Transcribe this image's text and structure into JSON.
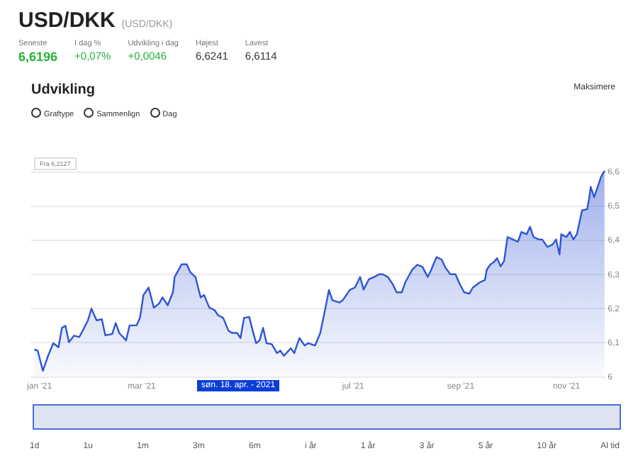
{
  "chart_data": {
    "type": "area",
    "title": "USD/DKK",
    "subtitle": "(USD/DKK)",
    "annotations": [
      "Seneste",
      "6,6196",
      "I dag %",
      "+0,07%",
      "Udvikling i dag",
      "+0,0046",
      "Højest",
      "6,6241",
      "Lavest",
      "6,6114",
      "Udvikling",
      "Maksimere",
      "Graftype",
      "Sammenlign",
      "Dag",
      "Fra 6,2127",
      "søn. 18. apr. - 2021",
      "1d",
      "1u",
      "1m",
      "3m",
      "6m",
      "i år",
      "1 år",
      "3 år",
      "5 år",
      "10 år",
      "Al tid"
    ],
    "x": [
      "2020-12-29",
      "2020-12-31",
      "2021-01-03",
      "2021-01-06",
      "2021-01-09",
      "2021-01-12",
      "2021-01-14",
      "2021-01-16",
      "2021-01-18",
      "2021-01-21",
      "2021-01-24",
      "2021-01-26",
      "2021-01-29",
      "2021-01-31",
      "2021-02-03",
      "2021-02-06",
      "2021-02-08",
      "2021-02-12",
      "2021-02-14",
      "2021-02-16",
      "2021-02-20",
      "2021-02-22",
      "2021-02-26",
      "2021-02-28",
      "2021-03-02",
      "2021-03-05",
      "2021-03-08",
      "2021-03-11",
      "2021-03-13",
      "2021-03-16",
      "2021-03-19",
      "2021-03-20",
      "2021-03-24",
      "2021-03-27",
      "2021-03-29",
      "2021-04-01",
      "2021-04-04",
      "2021-04-06",
      "2021-04-09",
      "2021-04-12",
      "2021-04-14",
      "2021-04-17",
      "2021-04-20",
      "2021-04-22",
      "2021-04-25",
      "2021-04-27",
      "2021-04-29",
      "2021-05-02",
      "2021-05-04",
      "2021-05-06",
      "2021-05-08",
      "2021-05-10",
      "2021-05-12",
      "2021-05-15",
      "2021-05-18",
      "2021-05-20",
      "2021-05-22",
      "2021-05-26",
      "2021-05-28",
      "2021-05-31",
      "2021-06-03",
      "2021-06-05",
      "2021-06-09",
      "2021-06-12",
      "2021-06-15",
      "2021-06-17",
      "2021-06-19",
      "2021-06-23",
      "2021-06-25",
      "2021-06-29",
      "2021-07-02",
      "2021-07-05",
      "2021-07-07",
      "2021-07-10",
      "2021-07-13",
      "2021-07-16",
      "2021-07-18",
      "2021-07-21",
      "2021-07-24",
      "2021-07-26",
      "2021-07-29",
      "2021-07-31",
      "2021-08-04",
      "2021-08-07",
      "2021-08-10",
      "2021-08-13",
      "2021-08-15",
      "2021-08-18",
      "2021-08-21",
      "2021-08-23",
      "2021-08-26",
      "2021-08-29",
      "2021-08-31",
      "2021-09-03",
      "2021-09-06",
      "2021-09-08",
      "2021-09-12",
      "2021-09-15",
      "2021-09-16",
      "2021-09-18",
      "2021-09-20",
      "2021-09-22",
      "2021-09-24",
      "2021-09-26",
      "2021-09-28",
      "2021-10-01",
      "2021-10-04",
      "2021-10-06",
      "2021-10-09",
      "2021-10-11",
      "2021-10-13",
      "2021-10-16",
      "2021-10-18",
      "2021-10-21",
      "2021-10-24",
      "2021-10-26",
      "2021-10-28",
      "2021-10-29",
      "2021-11-01",
      "2021-11-03",
      "2021-11-05",
      "2021-11-07",
      "2021-11-10",
      "2021-11-13",
      "2021-11-14",
      "2021-11-15",
      "2021-11-17",
      "2021-11-19",
      "2021-11-21",
      "2021-11-23"
    ],
    "series": [
      {
        "color": "#2f55d4",
        "values": [
          6.081,
          6.077,
          6.018,
          6.062,
          6.099,
          6.087,
          6.144,
          6.15,
          6.102,
          6.121,
          6.117,
          6.136,
          6.166,
          6.2,
          6.166,
          6.169,
          6.122,
          6.126,
          6.158,
          6.129,
          6.107,
          6.151,
          6.151,
          6.173,
          6.24,
          6.262,
          6.203,
          6.215,
          6.233,
          6.21,
          6.248,
          6.293,
          6.33,
          6.33,
          6.307,
          6.293,
          6.233,
          6.24,
          6.203,
          6.196,
          6.181,
          6.173,
          6.136,
          6.129,
          6.129,
          6.114,
          6.173,
          6.176,
          6.136,
          6.099,
          6.107,
          6.144,
          6.099,
          6.096,
          6.07,
          6.077,
          6.062,
          6.084,
          6.07,
          6.114,
          6.092,
          6.099,
          6.092,
          6.129,
          6.203,
          6.255,
          6.225,
          6.218,
          6.225,
          6.255,
          6.262,
          6.293,
          6.256,
          6.286,
          6.293,
          6.301,
          6.301,
          6.293,
          6.27,
          6.248,
          6.248,
          6.277,
          6.314,
          6.329,
          6.322,
          6.293,
          6.314,
          6.351,
          6.344,
          6.322,
          6.301,
          6.301,
          6.277,
          6.248,
          6.244,
          6.262,
          6.277,
          6.284,
          6.314,
          6.329,
          6.336,
          6.348,
          6.324,
          6.339,
          6.41,
          6.403,
          6.396,
          6.425,
          6.418,
          6.44,
          6.41,
          6.403,
          6.403,
          6.381,
          6.388,
          6.403,
          6.359,
          6.418,
          6.41,
          6.425,
          6.403,
          6.418,
          6.488,
          6.492,
          6.521,
          6.557,
          6.527,
          6.557,
          6.587,
          6.604
        ]
      }
    ],
    "xlim": [
      "2020-12-27",
      "2021-11-24"
    ],
    "xticks": [
      {
        "value": "2021-01-01",
        "label": "jan '21"
      },
      {
        "value": "2021-03-01",
        "label": "mar '21"
      },
      {
        "value": "2021-07-01",
        "label": "jul '21"
      },
      {
        "value": "2021-09-01",
        "label": "sep '21"
      },
      {
        "value": "2021-11-01",
        "label": "nov '21"
      }
    ],
    "ylim": [
      6,
      6.61
    ],
    "yticks": [
      6,
      {
        "value": 6.1,
        "label": "6,1"
      },
      {
        "value": 6.2,
        "label": "6,2"
      },
      {
        "value": 6.3,
        "label": "6,3"
      },
      {
        "value": 6.4,
        "label": "6,4"
      },
      {
        "value": 6.5,
        "label": "6,5"
      },
      {
        "value": 6.6,
        "label": "6,6"
      }
    ],
    "grid": "y",
    "legend": false,
    "marker": "none",
    "line_style": "solid"
  }
}
